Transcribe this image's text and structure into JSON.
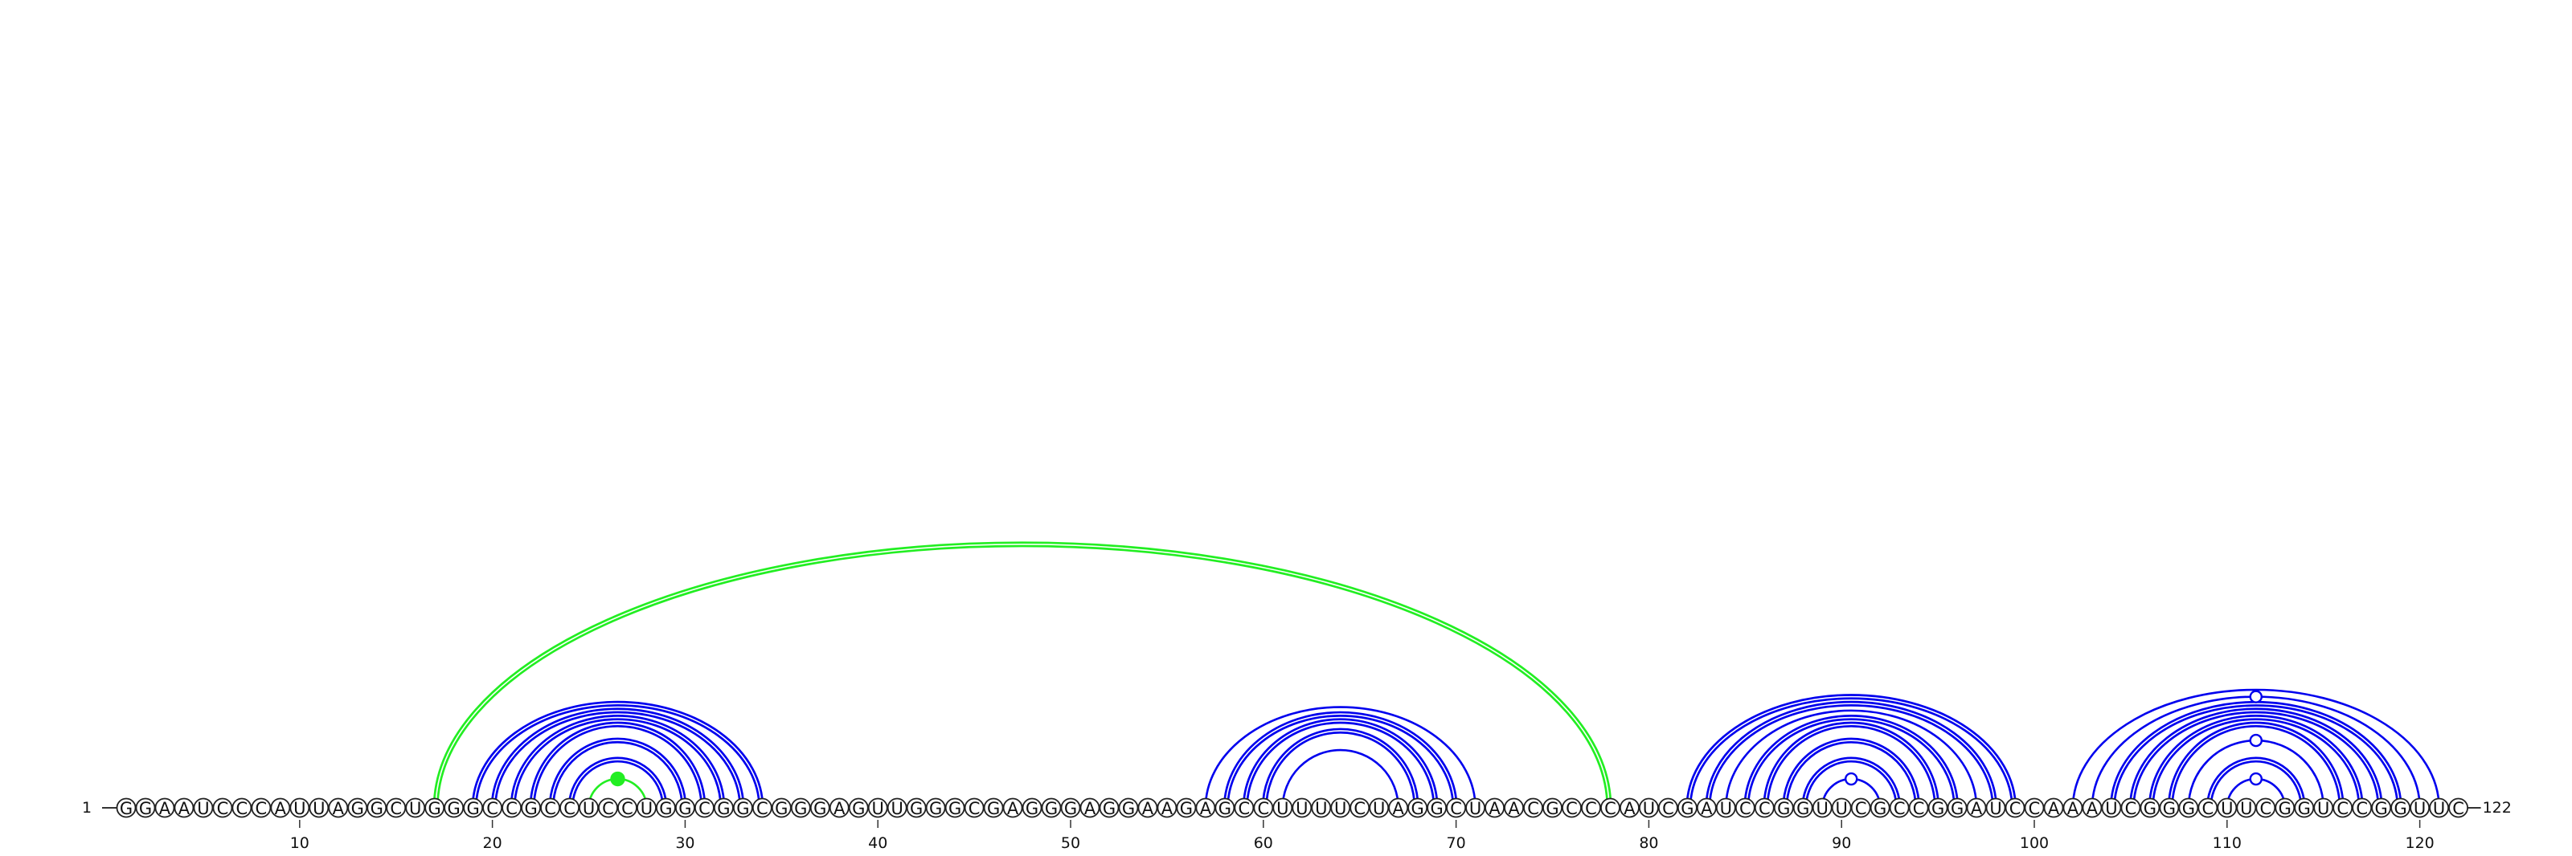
{
  "chart_data": {
    "type": "arc-diagram",
    "sequence": "GGAAUCCCAUUAGGCUGGGCCGCCUCCUGGCGGCGGGAGUUGGGCGAGGGAGGAAGAGCCUUUUCUAGGCUAACGCCCAUCGAUCCGGUUCGCCGGAUCCAAAUCGGGCUUCGGUCCGGUUC",
    "start_label": "1",
    "end_label": "122",
    "ticks": [
      10,
      20,
      30,
      40,
      50,
      60,
      70,
      80,
      90,
      100,
      110,
      120
    ],
    "colors": {
      "blue": "#0000ee",
      "green": "#22ee22"
    },
    "arcs": [
      {
        "i": 17,
        "j": 78,
        "color": "green",
        "double": true
      },
      {
        "i": 25,
        "j": 28,
        "color": "green",
        "double": false
      },
      {
        "i": 19,
        "j": 34,
        "color": "blue",
        "double": true
      },
      {
        "i": 20,
        "j": 33,
        "color": "blue",
        "double": true
      },
      {
        "i": 21,
        "j": 32,
        "color": "blue",
        "double": true
      },
      {
        "i": 22,
        "j": 31,
        "color": "blue",
        "double": true
      },
      {
        "i": 23,
        "j": 30,
        "color": "blue",
        "double": true
      },
      {
        "i": 24,
        "j": 29,
        "color": "blue",
        "double": true
      },
      {
        "i": 57,
        "j": 71,
        "color": "blue",
        "double": false
      },
      {
        "i": 58,
        "j": 70,
        "color": "blue",
        "double": true
      },
      {
        "i": 59,
        "j": 69,
        "color": "blue",
        "double": true
      },
      {
        "i": 60,
        "j": 68,
        "color": "blue",
        "double": true
      },
      {
        "i": 61,
        "j": 67,
        "color": "blue",
        "double": false
      },
      {
        "i": 82,
        "j": 99,
        "color": "blue",
        "double": true
      },
      {
        "i": 83,
        "j": 98,
        "color": "blue",
        "double": true
      },
      {
        "i": 84,
        "j": 97,
        "color": "blue",
        "double": false
      },
      {
        "i": 85,
        "j": 96,
        "color": "blue",
        "double": true
      },
      {
        "i": 86,
        "j": 95,
        "color": "blue",
        "double": true
      },
      {
        "i": 87,
        "j": 94,
        "color": "blue",
        "double": true
      },
      {
        "i": 88,
        "j": 93,
        "color": "blue",
        "double": true
      },
      {
        "i": 89,
        "j": 92,
        "color": "blue",
        "double": false
      },
      {
        "i": 102,
        "j": 121,
        "color": "blue",
        "double": false
      },
      {
        "i": 103,
        "j": 120,
        "color": "blue",
        "double": false
      },
      {
        "i": 104,
        "j": 119,
        "color": "blue",
        "double": true
      },
      {
        "i": 105,
        "j": 118,
        "color": "blue",
        "double": true
      },
      {
        "i": 106,
        "j": 117,
        "color": "blue",
        "double": true
      },
      {
        "i": 107,
        "j": 116,
        "color": "blue",
        "double": true
      },
      {
        "i": 108,
        "j": 115,
        "color": "blue",
        "double": false
      },
      {
        "i": 109,
        "j": 114,
        "color": "blue",
        "double": true
      },
      {
        "i": 110,
        "j": 113,
        "color": "blue",
        "double": false
      }
    ],
    "markers": [
      {
        "pos": 26.5,
        "arc": [
          25,
          28
        ],
        "color": "green",
        "filled": true
      },
      {
        "pos": 90.5,
        "arc": [
          89,
          92
        ],
        "color": "blue",
        "filled": false
      },
      {
        "pos": 111.5,
        "arc": [
          110,
          113
        ],
        "color": "blue",
        "filled": false
      },
      {
        "pos": 111.5,
        "arc": [
          108,
          115
        ],
        "color": "blue",
        "filled": false
      },
      {
        "pos": 111.5,
        "arc": [
          103,
          120
        ],
        "color": "blue",
        "filled": false
      }
    ]
  }
}
